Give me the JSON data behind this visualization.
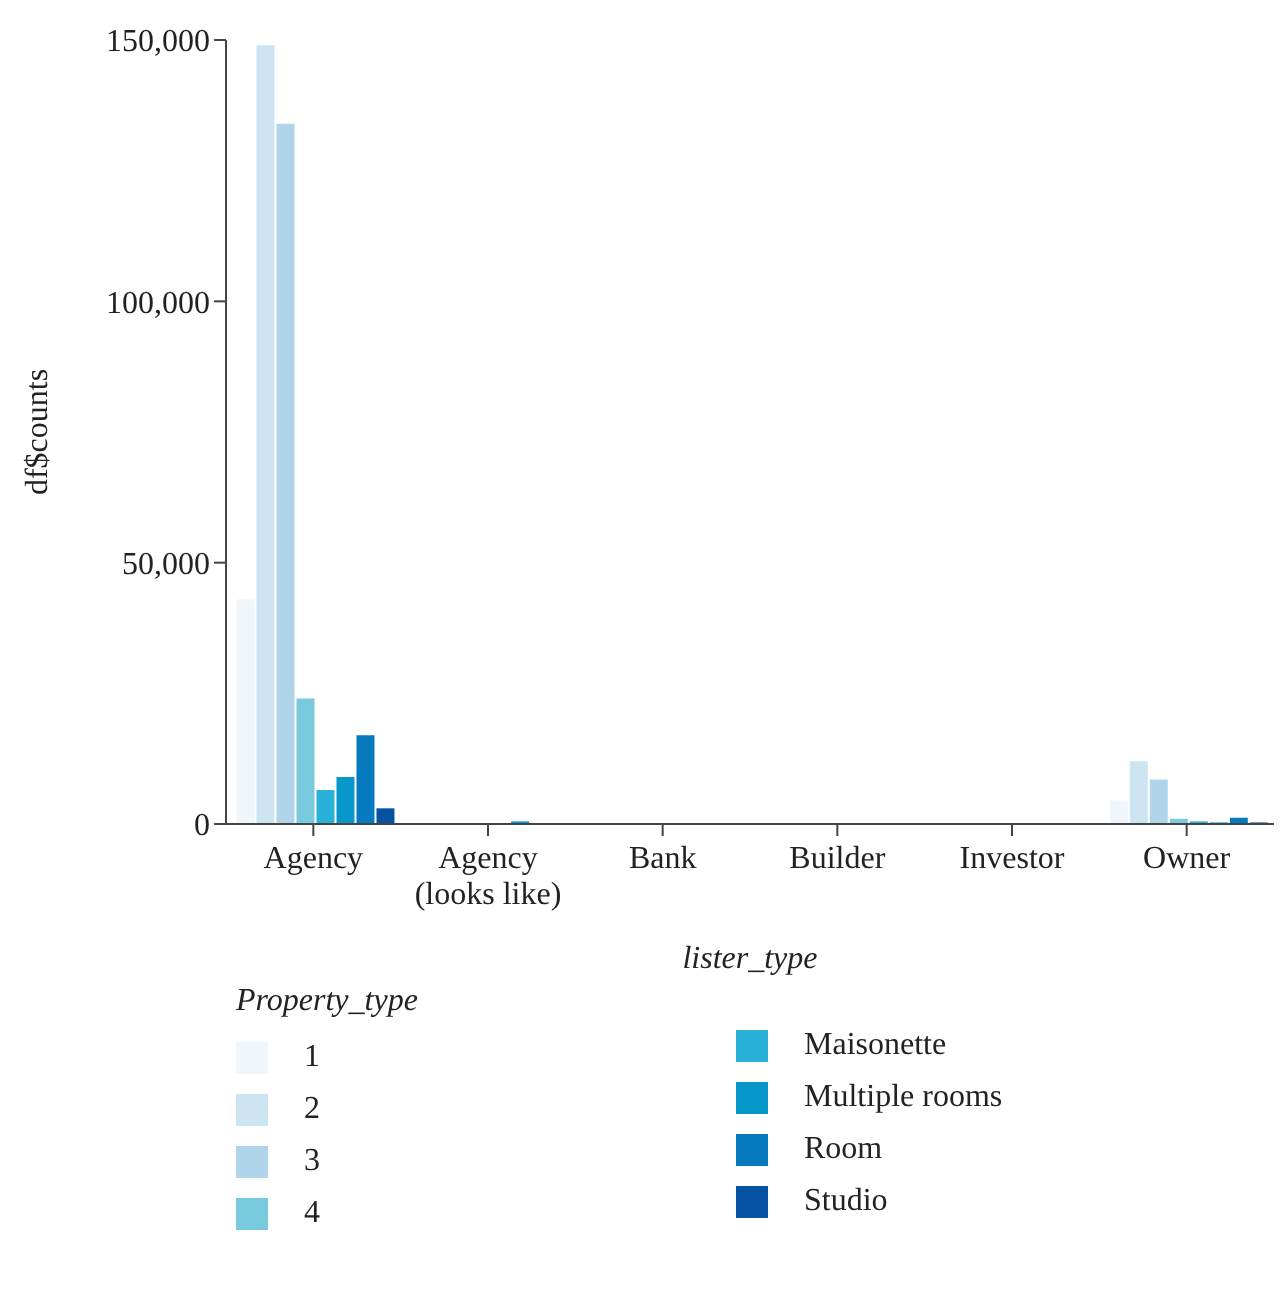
{
  "chart_data": {
    "type": "bar",
    "xlabel": "lister_type",
    "ylabel": "df$counts",
    "legend_title": "Property_type",
    "legend": "bottom",
    "categories": [
      "Agency",
      "Agency (looks like)",
      "Bank",
      "Builder",
      "Investor",
      "Owner"
    ],
    "ylim": [
      0,
      150000
    ],
    "yticks": [
      {
        "value": 0,
        "label": "0"
      },
      {
        "value": 50000,
        "label": "50,000"
      },
      {
        "value": 100000,
        "label": "100,000"
      },
      {
        "value": 150000,
        "label": "150,000"
      }
    ],
    "series": [
      {
        "name": "1",
        "color": "#f0f7fc",
        "values": [
          43000,
          0,
          0,
          0,
          0,
          4500
        ]
      },
      {
        "name": "2",
        "color": "#cde4f2",
        "values": [
          149000,
          0,
          0,
          0,
          0,
          12000
        ]
      },
      {
        "name": "3",
        "color": "#b0d5ea",
        "values": [
          134000,
          0,
          0,
          0,
          0,
          8500
        ]
      },
      {
        "name": "4",
        "color": "#79c9df",
        "values": [
          24000,
          0,
          0,
          0,
          0,
          1000
        ]
      },
      {
        "name": "Maisonette",
        "color": "#29b1d8",
        "values": [
          6500,
          0,
          0,
          0,
          0,
          500
        ]
      },
      {
        "name": "Multiple rooms",
        "color": "#0797c9",
        "values": [
          9000,
          500,
          0,
          0,
          0,
          300
        ]
      },
      {
        "name": "Room",
        "color": "#0779be",
        "values": [
          17000,
          0,
          0,
          0,
          0,
          1200
        ]
      },
      {
        "name": "Studio",
        "color": "#0552a3",
        "values": [
          3000,
          0,
          0,
          0,
          0,
          300
        ]
      }
    ]
  }
}
